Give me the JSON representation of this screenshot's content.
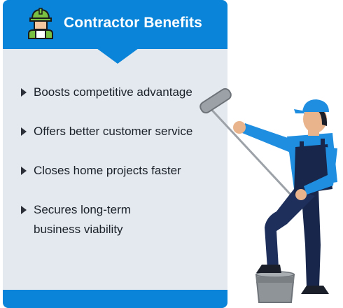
{
  "header": {
    "title": "Contractor Benefits",
    "icon": "construction-worker-icon",
    "color": "#0a84d8"
  },
  "benefits": [
    {
      "label": "Boosts competitive advantage"
    },
    {
      "label": "Offers better customer service"
    },
    {
      "label": "Closes home projects faster"
    },
    {
      "label": "Secures long-term business viability"
    }
  ],
  "illustration": {
    "subject": "painter-with-paint-roller",
    "colors": {
      "shirt": "#1f8ee0",
      "overalls": "#17264a",
      "cap": "#1f8ee0",
      "bucket": "#8f9499"
    }
  }
}
